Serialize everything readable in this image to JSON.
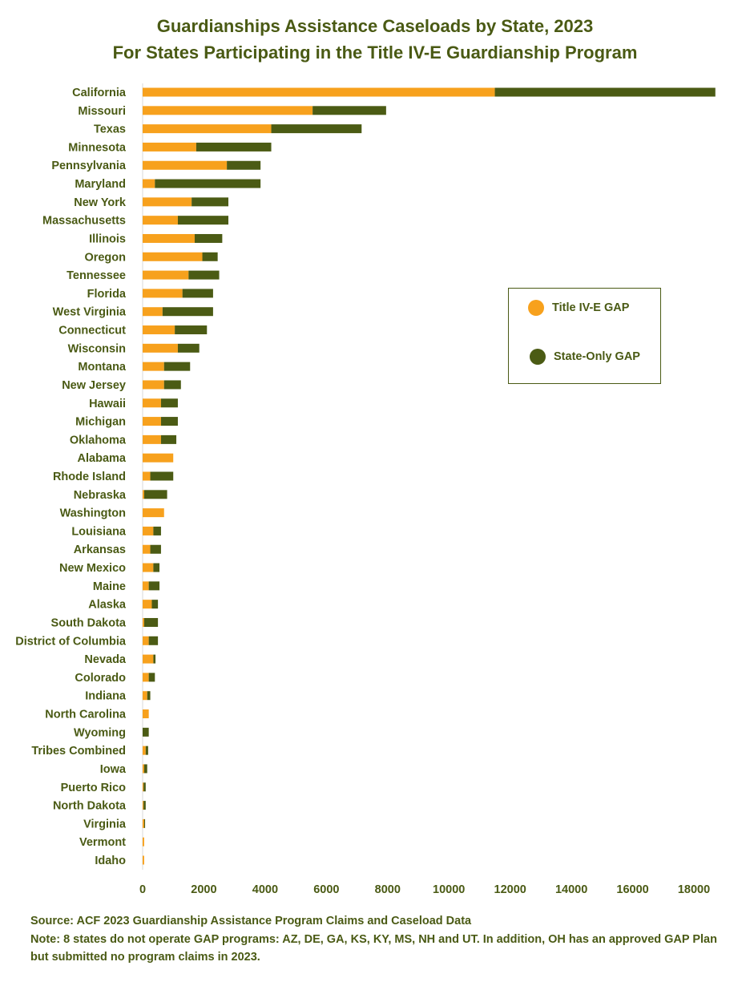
{
  "title_line1": "Guardianships Assistance Caseloads by State, 2023",
  "title_line2": "For States Participating in the Title IV-E Guardianship Program",
  "source": "Source:  ACF 2023 Guardianship Assistance Program Claims and Caseload Data",
  "note": "Note:  8 states do not operate GAP programs: AZ, DE, GA, KS, KY, MS, NH and UT. In addition, OH has an approved GAP Plan but submitted no program claims in 2023.",
  "colors": {
    "title_iv_e": "#F7A11D",
    "state_only": "#4B5B14",
    "text": "#4a5a14",
    "axis": "#d9d9d9"
  },
  "chart_data": {
    "type": "bar",
    "orientation": "horizontal",
    "stacked": true,
    "title": "Guardianships Assistance Caseloads by State, 2023 For States Participating in the Title IV-E Guardianship Program",
    "xlim": [
      0,
      18000
    ],
    "xticks": [
      0,
      2000,
      4000,
      6000,
      8000,
      10000,
      12000,
      14000,
      16000,
      18000
    ],
    "grid": false,
    "legend_position": "right",
    "categories": [
      "California",
      "Missouri",
      "Texas",
      "Minnesota",
      "Pennsylvania",
      "Maryland",
      "New York",
      "Massachusetts",
      "Illinois",
      "Oregon",
      "Tennessee",
      "Florida",
      "West Virginia",
      "Connecticut",
      "Wisconsin",
      "Montana",
      "New Jersey",
      "Hawaii",
      "Michigan",
      "Oklahoma",
      "Alabama",
      "Rhode Island",
      "Nebraska",
      "Washington",
      "Louisiana",
      "Arkansas",
      "New Mexico",
      "Maine",
      "Alaska",
      "South Dakota",
      "District of Columbia",
      "Nevada",
      "Colorado",
      "Indiana",
      "North Carolina",
      "Wyoming",
      "Tribes Combined",
      "Iowa",
      "Puerto Rico",
      "North Dakota",
      "Virginia",
      "Vermont",
      "Idaho"
    ],
    "series": [
      {
        "name": "Title IV-E GAP",
        "values": [
          11500,
          5550,
          4200,
          1750,
          2750,
          400,
          1600,
          1150,
          1700,
          1950,
          1500,
          1300,
          650,
          1050,
          1150,
          700,
          700,
          600,
          600,
          600,
          1000,
          250,
          50,
          700,
          350,
          250,
          350,
          200,
          300,
          50,
          200,
          350,
          200,
          150,
          200,
          0,
          100,
          50,
          30,
          30,
          50,
          50,
          50
        ]
      },
      {
        "name": "State-Only GAP",
        "values": [
          7200,
          2400,
          2950,
          2450,
          1100,
          3450,
          1200,
          1650,
          900,
          500,
          1000,
          1000,
          1650,
          1050,
          700,
          850,
          550,
          550,
          550,
          500,
          0,
          750,
          750,
          0,
          250,
          350,
          200,
          350,
          200,
          450,
          300,
          70,
          200,
          100,
          0,
          200,
          80,
          100,
          70,
          70,
          30,
          0,
          0
        ]
      }
    ]
  }
}
